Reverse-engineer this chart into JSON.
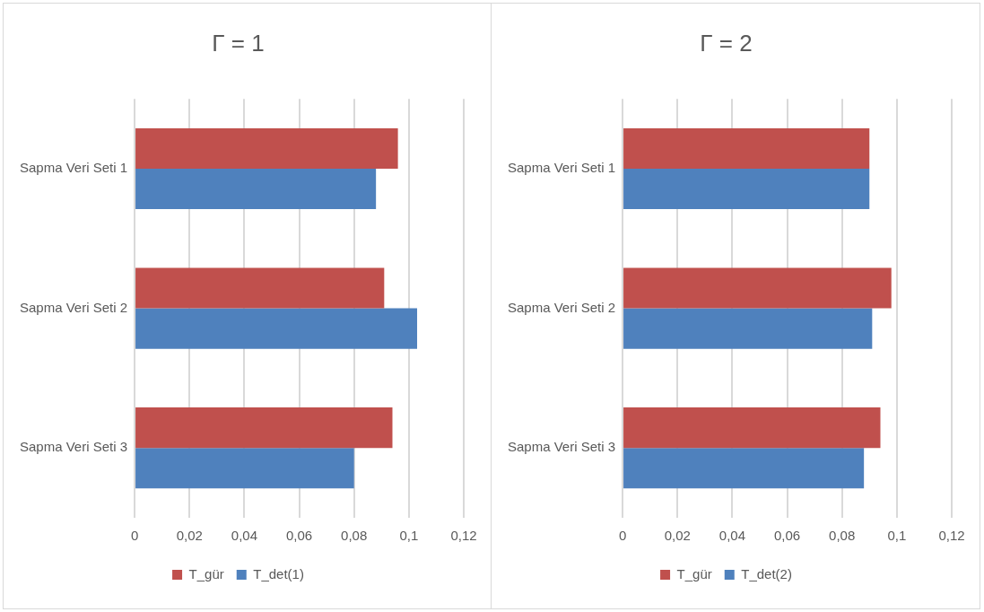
{
  "chart_data": [
    {
      "type": "bar",
      "orientation": "horizontal",
      "title": "Γ = 1",
      "categories": [
        "Sapma Veri Seti 1",
        "Sapma Veri Seti 2",
        "Sapma Veri Seti 3"
      ],
      "series": [
        {
          "name": "T_gür",
          "color": "#c0504d",
          "values": [
            0.096,
            0.091,
            0.094
          ]
        },
        {
          "name": "T_det(1)",
          "color": "#4f81bd",
          "values": [
            0.088,
            0.103,
            0.08
          ]
        }
      ],
      "xlim": [
        0,
        0.12
      ],
      "xticks": [
        0,
        {
          "value": 0.02,
          "label": "0,02"
        },
        {
          "value": 0.04,
          "label": "0,04"
        },
        {
          "value": 0.06,
          "label": "0,06"
        },
        {
          "value": 0.08,
          "label": "0,08"
        },
        {
          "value": 0.1,
          "label": "0,1"
        },
        {
          "value": 0.12,
          "label": "0,12"
        }
      ],
      "grid": "x",
      "legend": "bottom"
    },
    {
      "type": "bar",
      "orientation": "horizontal",
      "title": "Γ = 2",
      "categories": [
        "Sapma Veri Seti 1",
        "Sapma Veri Seti 2",
        "Sapma Veri Seti 3"
      ],
      "series": [
        {
          "name": "T_gür",
          "color": "#c0504d",
          "values": [
            0.09,
            0.098,
            0.094
          ]
        },
        {
          "name": "T_det(2)",
          "color": "#4f81bd",
          "values": [
            0.09,
            0.091,
            0.088
          ]
        }
      ],
      "xlim": [
        0,
        0.12
      ],
      "xticks": [
        0,
        {
          "value": 0.02,
          "label": "0,02"
        },
        {
          "value": 0.04,
          "label": "0,04"
        },
        {
          "value": 0.06,
          "label": "0,06"
        },
        {
          "value": 0.08,
          "label": "0,08"
        },
        {
          "value": 0.1,
          "label": "0,1"
        },
        {
          "value": 0.12,
          "label": "0,12"
        }
      ],
      "grid": "x",
      "legend": "bottom"
    }
  ]
}
